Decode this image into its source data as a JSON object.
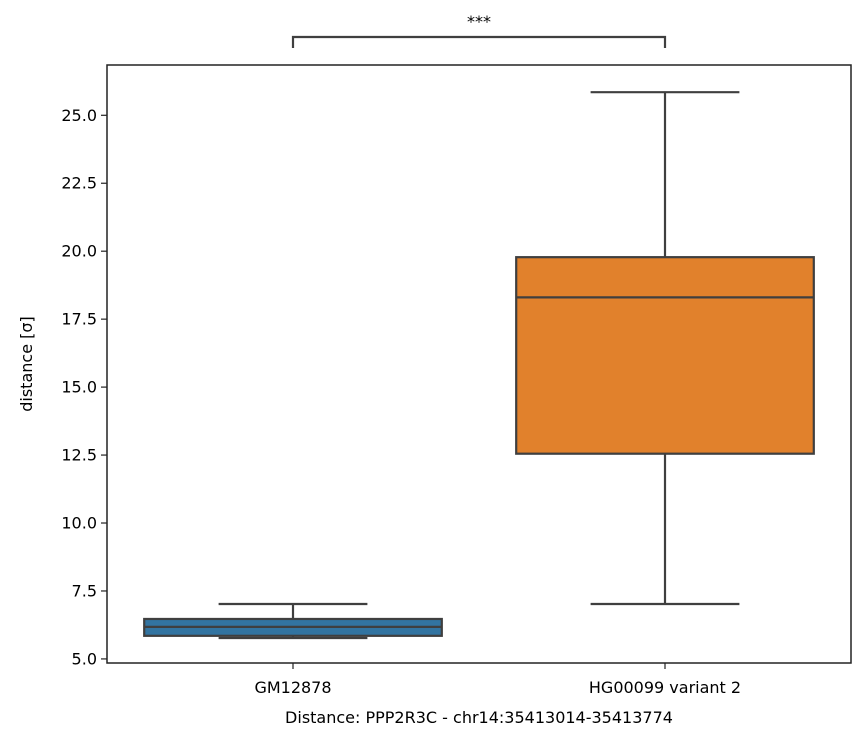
{
  "chart_data": {
    "type": "box",
    "xlabel": "Distance:  PPP2R3C - chr14:35413014-35413774",
    "ylabel": "distance [σ]",
    "ylim": [
      4.85,
      26.85
    ],
    "yticks": [
      5.0,
      7.5,
      10.0,
      12.5,
      15.0,
      17.5,
      20.0,
      22.5,
      25.0
    ],
    "ytick_labels": [
      "5.0",
      "7.5",
      "10.0",
      "12.5",
      "15.0",
      "17.5",
      "20.0",
      "22.5",
      "25.0"
    ],
    "categories": [
      "GM12878",
      "HG00099 variant 2"
    ],
    "boxes": [
      {
        "category": "GM12878",
        "whisker_low": 5.77,
        "q1": 5.85,
        "median": 6.18,
        "q3": 6.47,
        "whisker_high": 7.02,
        "color": "#3274a1"
      },
      {
        "category": "HG00099 variant 2",
        "whisker_low": 7.02,
        "q1": 12.55,
        "median": 18.3,
        "q3": 19.78,
        "whisker_high": 25.85,
        "color": "#e1812c"
      }
    ],
    "annotation": {
      "text": "***",
      "between": [
        "GM12878",
        "HG00099 variant 2"
      ]
    },
    "grid": false
  }
}
